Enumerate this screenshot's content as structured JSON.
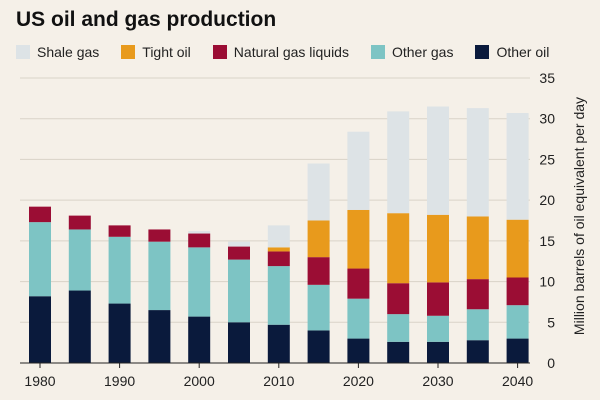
{
  "title": "US oil and gas production",
  "chart_data": {
    "type": "bar",
    "stacked": true,
    "title": "US oil and gas production",
    "xlabel": "",
    "ylabel": "Million barrels of oil equivalent per day",
    "ylim": [
      0,
      35
    ],
    "yticks": [
      0,
      5,
      10,
      15,
      20,
      25,
      30,
      35
    ],
    "x_tick_labels": [
      "1980",
      "1990",
      "2000",
      "2010",
      "2020",
      "2030",
      "2040"
    ],
    "x": [
      1980,
      1985,
      1990,
      1995,
      2000,
      2005,
      2010,
      2015,
      2020,
      2025,
      2030,
      2035,
      2040
    ],
    "grid": true,
    "legend_position": "top",
    "series": [
      {
        "name": "Other oil",
        "color": "#0a1a3c",
        "values": [
          8.2,
          8.9,
          7.3,
          6.5,
          5.7,
          5.0,
          4.7,
          4.0,
          3.0,
          2.6,
          2.6,
          2.8,
          3.0
        ]
      },
      {
        "name": "Other gas",
        "color": "#7dc4c4",
        "values": [
          9.1,
          7.5,
          8.2,
          8.4,
          8.5,
          7.7,
          7.2,
          5.6,
          4.9,
          3.4,
          3.2,
          3.8,
          4.1
        ]
      },
      {
        "name": "Natural gas liquids",
        "color": "#9b0d34",
        "values": [
          1.9,
          1.7,
          1.4,
          1.5,
          1.7,
          1.6,
          1.8,
          3.4,
          3.7,
          3.8,
          4.1,
          3.7,
          3.4
        ]
      },
      {
        "name": "Tight oil",
        "color": "#e89a1c",
        "values": [
          0,
          0,
          0,
          0,
          0,
          0,
          0.5,
          4.5,
          7.2,
          8.6,
          8.3,
          7.7,
          7.1
        ]
      },
      {
        "name": "Shale gas",
        "color": "#dde3e6",
        "values": [
          0,
          0,
          0,
          0,
          0.3,
          0.6,
          2.7,
          7.0,
          9.6,
          12.5,
          13.3,
          13.3,
          13.1
        ]
      }
    ],
    "legend_order": [
      "Shale gas",
      "Tight oil",
      "Natural gas liquids",
      "Other gas",
      "Other oil"
    ]
  },
  "style": {
    "background": "#f5f0e8",
    "gridline_color": "#d9d3c7"
  }
}
